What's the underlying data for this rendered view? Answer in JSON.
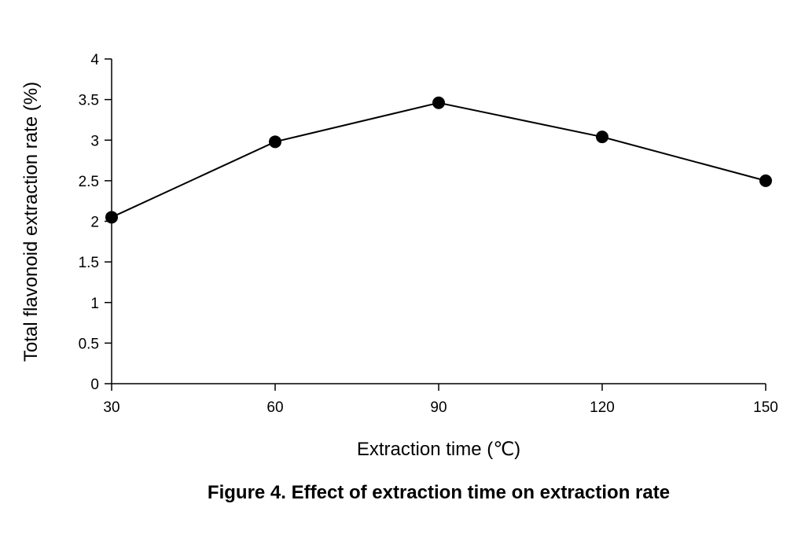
{
  "chart_data": {
    "type": "line",
    "caption": "Figure 4. Effect of extraction time on extraction rate",
    "xlabel": "Extraction time (℃)",
    "ylabel": "Total flavonoid extraction rate (%)",
    "x": [
      30,
      60,
      90,
      120,
      150
    ],
    "series": [
      {
        "values": [
          2.05,
          2.98,
          3.46,
          3.04,
          2.5
        ]
      }
    ],
    "xlim": [
      30,
      150
    ],
    "ylim": [
      0,
      4
    ],
    "x_ticks": [
      "30",
      "60",
      "90",
      "120",
      "150"
    ],
    "y_ticks": [
      "0",
      "0.5",
      "1",
      "1.5",
      "2",
      "2.5",
      "3",
      "3.5",
      "4"
    ],
    "grid": false,
    "legend": "none",
    "marker": "filled-circle",
    "line_color": "#000000"
  }
}
